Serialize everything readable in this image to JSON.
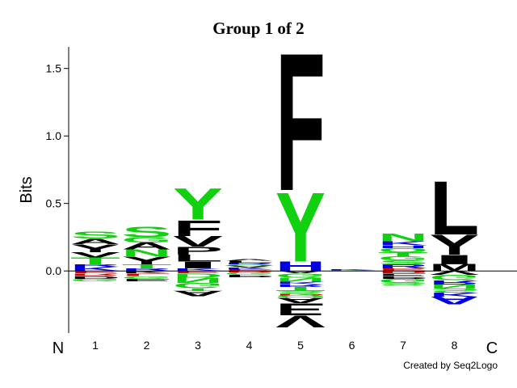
{
  "chart_data": {
    "type": "logo",
    "title": "Group 1 of 2",
    "y_label": "Bits",
    "n_label": "N",
    "c_label": "C",
    "credit": "Created by Seq2Logo",
    "categories": [
      "1",
      "2",
      "3",
      "4",
      "5",
      "6",
      "7",
      "8"
    ],
    "ylim": [
      -0.46,
      1.66
    ],
    "yticks": [
      {
        "value": 0,
        "label": "0.0"
      },
      {
        "value": 0.5,
        "label": "0.5"
      },
      {
        "value": 1,
        "label": "1.0"
      },
      {
        "value": 1.5,
        "label": "1.5"
      }
    ],
    "stacks": [
      [
        {
          "letter": "K",
          "color": "#0000e0",
          "value": 0.03
        },
        {
          "letter": "R",
          "color": "#0000e0",
          "value": 0.02
        },
        {
          "letter": "T",
          "color": "#10d010",
          "value": 0.05
        },
        {
          "letter": "V",
          "color": "#000000",
          "value": 0.04
        },
        {
          "letter": "Y",
          "color": "#000000",
          "value": 0.06
        },
        {
          "letter": "A",
          "color": "#000000",
          "value": 0.04
        },
        {
          "letter": "S",
          "color": "#10d010",
          "value": 0.05
        },
        {
          "letter": "E",
          "color": "#d00000",
          "value": -0.02
        },
        {
          "letter": "R",
          "color": "#d00000",
          "value": -0.02
        },
        {
          "letter": "D",
          "color": "#000000",
          "value": -0.02
        },
        {
          "letter": "G",
          "color": "#10d010",
          "value": -0.02
        }
      ],
      [
        {
          "letter": "R",
          "color": "#0000e0",
          "value": 0.02
        },
        {
          "letter": "T",
          "color": "#10d010",
          "value": 0.03
        },
        {
          "letter": "Y",
          "color": "#000000",
          "value": 0.06
        },
        {
          "letter": "N",
          "color": "#10d010",
          "value": 0.05
        },
        {
          "letter": "A",
          "color": "#000000",
          "value": 0.05
        },
        {
          "letter": "G",
          "color": "#10d010",
          "value": 0.04
        },
        {
          "letter": "S",
          "color": "#10d010",
          "value": 0.08
        },
        {
          "letter": "K",
          "color": "#000000",
          "value": -0.02
        },
        {
          "letter": "L",
          "color": "#d00000",
          "value": -0.02
        },
        {
          "letter": "G",
          "color": "#10d010",
          "value": -0.02
        },
        {
          "letter": "E",
          "color": "#000000",
          "value": -0.02
        }
      ],
      [
        {
          "letter": "K",
          "color": "#0000e0",
          "value": 0.02
        },
        {
          "letter": "I",
          "color": "#000000",
          "value": 0.05
        },
        {
          "letter": "L",
          "color": "#000000",
          "value": 0.05
        },
        {
          "letter": "P",
          "color": "#000000",
          "value": 0.06
        },
        {
          "letter": "V",
          "color": "#000000",
          "value": 0.08
        },
        {
          "letter": "F",
          "color": "#000000",
          "value": 0.12
        },
        {
          "letter": "Y",
          "color": "#10d010",
          "value": 0.24
        },
        {
          "letter": "E",
          "color": "#d00000",
          "value": -0.02
        },
        {
          "letter": "D",
          "color": "#10d010",
          "value": -0.03
        },
        {
          "letter": "N",
          "color": "#10d010",
          "value": -0.04
        },
        {
          "letter": "G",
          "color": "#10d010",
          "value": -0.04
        },
        {
          "letter": "T",
          "color": "#10d010",
          "value": -0.02
        },
        {
          "letter": "A",
          "color": "#000000",
          "value": -0.04
        }
      ],
      [
        {
          "letter": "E",
          "color": "#d00000",
          "value": 0.01
        },
        {
          "letter": "K",
          "color": "#0000e0",
          "value": 0.015
        },
        {
          "letter": "V",
          "color": "#000000",
          "value": 0.015
        },
        {
          "letter": "S",
          "color": "#10d010",
          "value": 0.01
        },
        {
          "letter": "R",
          "color": "#0000e0",
          "value": 0.01
        },
        {
          "letter": "L",
          "color": "#000000",
          "value": 0.015
        },
        {
          "letter": "A",
          "color": "#000000",
          "value": 0.01
        },
        {
          "letter": "D",
          "color": "#d00000",
          "value": -0.01
        },
        {
          "letter": "G",
          "color": "#10d010",
          "value": -0.02
        },
        {
          "letter": "P",
          "color": "#000000",
          "value": -0.02
        }
      ],
      [
        {
          "letter": "H",
          "color": "#0000e0",
          "value": 0.07
        },
        {
          "letter": "Y",
          "color": "#10d010",
          "value": 0.53
        },
        {
          "letter": "F",
          "color": "#000000",
          "value": 1.05
        },
        {
          "letter": "A",
          "color": "#000000",
          "value": -0.02
        },
        {
          "letter": "G",
          "color": "#10d010",
          "value": -0.03
        },
        {
          "letter": "N",
          "color": "#10d010",
          "value": -0.03
        },
        {
          "letter": "K",
          "color": "#0000e0",
          "value": -0.02
        },
        {
          "letter": "R",
          "color": "#0000e0",
          "value": -0.02
        },
        {
          "letter": "T",
          "color": "#10d010",
          "value": -0.03
        },
        {
          "letter": "S",
          "color": "#10d010",
          "value": -0.02
        },
        {
          "letter": "D",
          "color": "#d00000",
          "value": -0.01
        },
        {
          "letter": "Q",
          "color": "#10d010",
          "value": -0.02
        },
        {
          "letter": "A",
          "color": "#000000",
          "value": -0.04
        },
        {
          "letter": "E",
          "color": "#000000",
          "value": -0.09
        },
        {
          "letter": "V",
          "color": "#000000",
          "value": -0.09
        }
      ],
      [
        {
          "letter": "T",
          "color": "#10d010",
          "value": 0.005
        },
        {
          "letter": "K",
          "color": "#0000e0",
          "value": 0.008
        },
        {
          "letter": "D",
          "color": "#d00000",
          "value": -0.005
        }
      ],
      [
        {
          "letter": "E",
          "color": "#d00000",
          "value": 0.02
        },
        {
          "letter": "R",
          "color": "#0000e0",
          "value": 0.03
        },
        {
          "letter": "S",
          "color": "#10d010",
          "value": 0.03
        },
        {
          "letter": "G",
          "color": "#10d010",
          "value": 0.03
        },
        {
          "letter": "T",
          "color": "#10d010",
          "value": 0.03
        },
        {
          "letter": "Q",
          "color": "#10d010",
          "value": 0.03
        },
        {
          "letter": "H",
          "color": "#0000e0",
          "value": 0.02
        },
        {
          "letter": "K",
          "color": "#0000e0",
          "value": 0.03
        },
        {
          "letter": "N",
          "color": "#10d010",
          "value": 0.06
        },
        {
          "letter": "D",
          "color": "#d00000",
          "value": -0.02
        },
        {
          "letter": "E",
          "color": "#000000",
          "value": -0.02
        },
        {
          "letter": "P",
          "color": "#000000",
          "value": -0.02
        },
        {
          "letter": "G",
          "color": "#10d010",
          "value": -0.03
        },
        {
          "letter": "S",
          "color": "#10d010",
          "value": -0.02
        }
      ],
      [
        {
          "letter": "M",
          "color": "#000000",
          "value": 0.05
        },
        {
          "letter": "I",
          "color": "#000000",
          "value": 0.07
        },
        {
          "letter": "Y",
          "color": "#000000",
          "value": 0.15
        },
        {
          "letter": "L",
          "color": "#000000",
          "value": 0.41
        },
        {
          "letter": "V",
          "color": "#000000",
          "value": -0.03
        },
        {
          "letter": "G",
          "color": "#10d010",
          "value": -0.04
        },
        {
          "letter": "R",
          "color": "#0000e0",
          "value": -0.03
        },
        {
          "letter": "N",
          "color": "#10d010",
          "value": -0.03
        },
        {
          "letter": "S",
          "color": "#10d010",
          "value": -0.03
        },
        {
          "letter": "K",
          "color": "#0000e0",
          "value": -0.03
        },
        {
          "letter": "A",
          "color": "#0000e0",
          "value": -0.06
        }
      ]
    ]
  }
}
